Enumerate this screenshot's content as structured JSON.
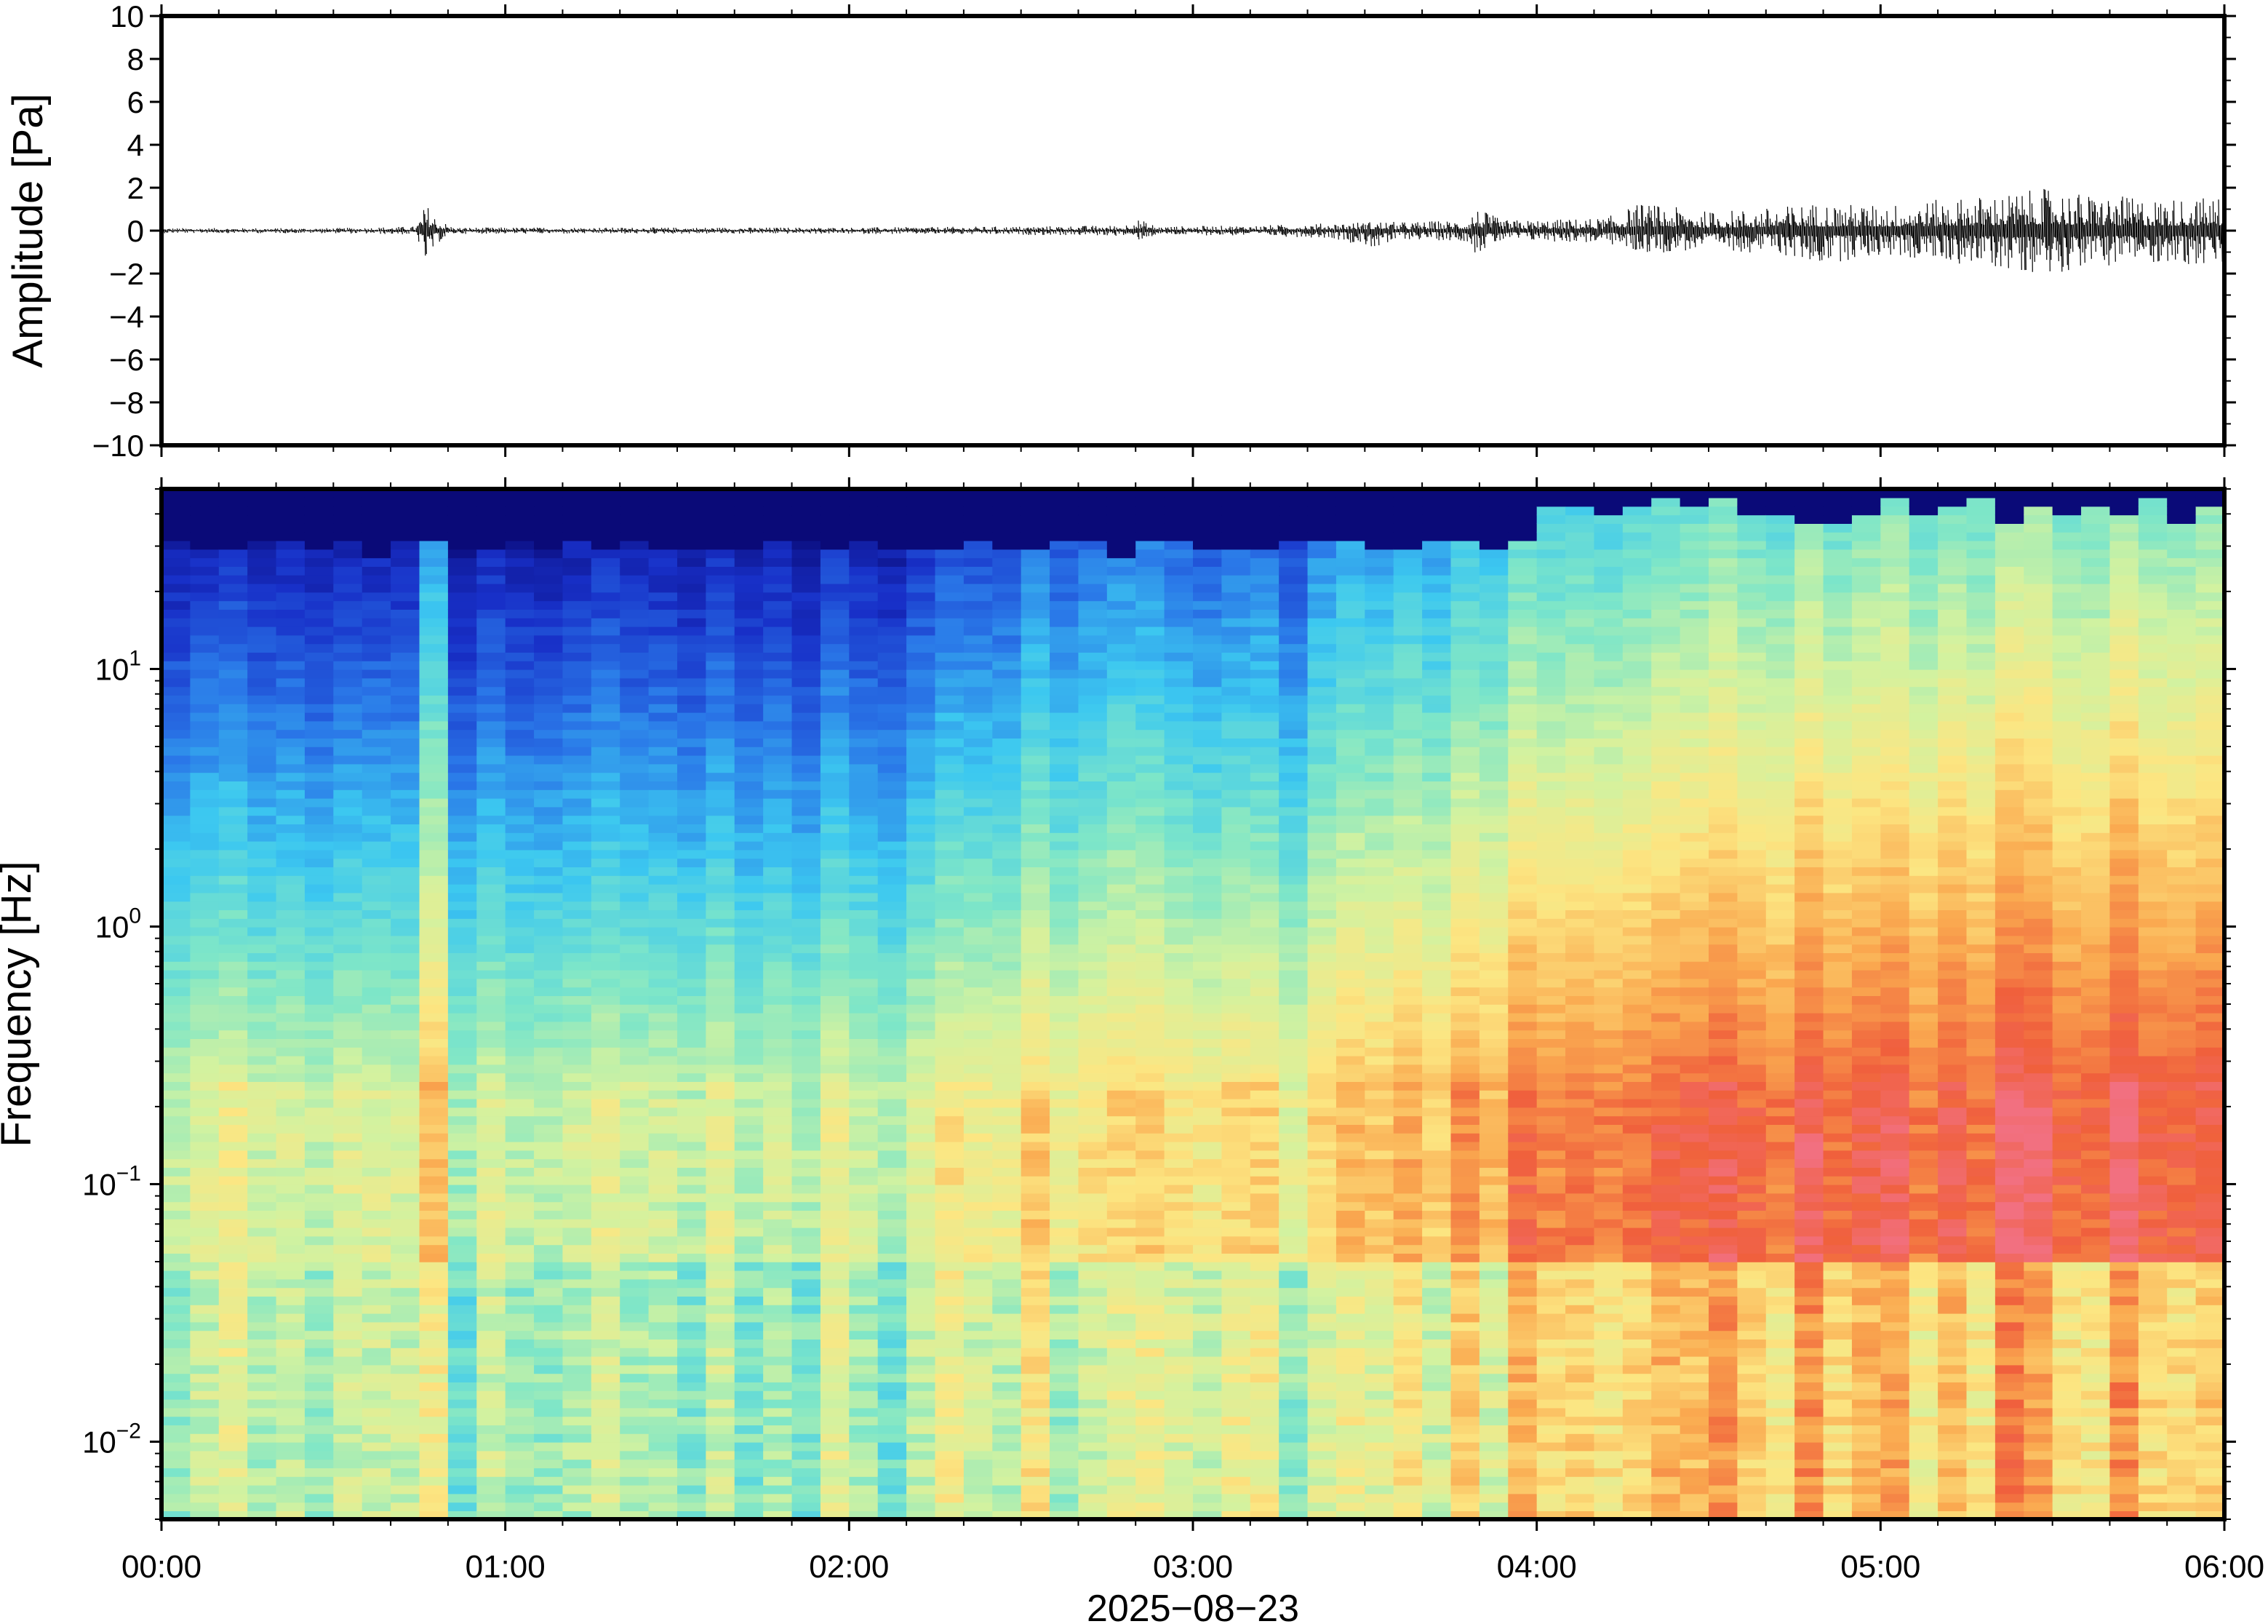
{
  "chart_data": [
    {
      "type": "line",
      "panel": "waveform",
      "ylabel": "Amplitude [Pa]",
      "ylim": [
        -10,
        10
      ],
      "yticks": [
        10,
        8,
        6,
        4,
        2,
        0,
        -2,
        -4,
        -6,
        -8,
        -10
      ],
      "ytick_labels": [
        "10",
        "8",
        "6",
        "4",
        "2",
        "0",
        "−2",
        "−4",
        "−6",
        "−8",
        "−10"
      ],
      "xlim_hours": [
        0,
        6
      ],
      "grid": false,
      "line_color": "#000000",
      "envelope": {
        "time_hours": [
          0.0,
          0.5,
          0.74,
          0.77,
          0.8,
          0.85,
          1.5,
          2.0,
          2.5,
          2.8,
          2.83,
          2.9,
          3.2,
          3.4,
          3.55,
          3.6,
          3.8,
          3.82,
          3.9,
          4.0,
          4.2,
          4.3,
          4.5,
          4.7,
          4.8,
          5.0,
          5.2,
          5.4,
          5.5,
          5.6,
          5.8,
          6.0
        ],
        "max": [
          0.12,
          0.12,
          0.2,
          1.3,
          0.6,
          0.15,
          0.15,
          0.15,
          0.2,
          0.25,
          0.6,
          0.2,
          0.25,
          0.35,
          0.45,
          0.4,
          0.5,
          1.1,
          0.5,
          0.5,
          0.6,
          1.3,
          0.9,
          1.1,
          1.3,
          1.2,
          1.5,
          1.8,
          2.0,
          1.7,
          1.5,
          1.6
        ],
        "min": [
          -0.12,
          -0.12,
          -0.2,
          -1.9,
          -0.6,
          -0.15,
          -0.15,
          -0.15,
          -0.2,
          -0.25,
          -0.5,
          -0.2,
          -0.25,
          -0.35,
          -0.9,
          -0.4,
          -0.5,
          -1.1,
          -0.5,
          -0.5,
          -0.6,
          -1.1,
          -0.9,
          -1.1,
          -1.6,
          -1.2,
          -1.5,
          -1.9,
          -2.0,
          -1.7,
          -1.5,
          -1.8
        ]
      }
    },
    {
      "type": "heatmap",
      "panel": "spectrogram",
      "ylabel": "Frequency [Hz]",
      "xlabel": "2025−08−23",
      "yscale": "log",
      "ylim": [
        0.005,
        50
      ],
      "yticks": [
        0.01,
        0.1,
        1,
        10
      ],
      "ytick_labels": [
        {
          "base": "10",
          "exp": "−2"
        },
        {
          "base": "10",
          "exp": "−1"
        },
        {
          "base": "10",
          "exp": "0"
        },
        {
          "base": "10",
          "exp": "1"
        }
      ],
      "xlim_hours": [
        0,
        6
      ],
      "xticks_hours": [
        0,
        1,
        2,
        3,
        4,
        5,
        6
      ],
      "xtick_labels": [
        "00:00",
        "01:00",
        "02:00",
        "03:00",
        "04:00",
        "05:00",
        "06:00"
      ],
      "colormap": [
        "#0a0a78",
        "#1830c8",
        "#2a78e8",
        "#3cc8f0",
        "#7ee6c8",
        "#d2f2a0",
        "#fce682",
        "#faaa50",
        "#f0603c",
        "#f27080"
      ],
      "time_bins": 72,
      "nyquist_hz": 50,
      "energy_profile": {
        "time_hours": [
          0.0,
          0.5,
          0.72,
          0.78,
          0.86,
          1.0,
          1.5,
          2.0,
          2.3,
          2.6,
          2.8,
          3.0,
          3.3,
          3.4,
          3.6,
          3.8,
          3.9,
          4.0,
          4.5,
          5.0,
          5.5,
          6.0
        ],
        "level": [
          0.32,
          0.3,
          0.3,
          0.62,
          0.32,
          0.3,
          0.32,
          0.32,
          0.38,
          0.48,
          0.52,
          0.46,
          0.46,
          0.58,
          0.6,
          0.62,
          0.7,
          0.7,
          0.76,
          0.8,
          0.85,
          0.86
        ]
      }
    }
  ]
}
